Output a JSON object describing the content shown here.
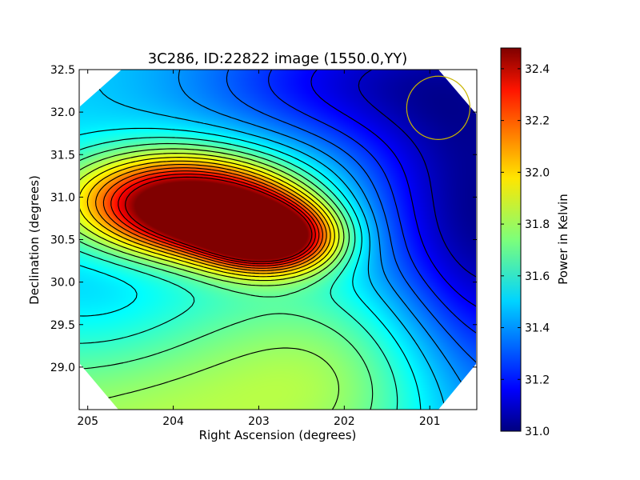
{
  "chart_data": {
    "type": "heatmap",
    "title": "3C286, ID:22822 image (1550.0,YY)",
    "xlabel": "Right Ascension (degrees)",
    "ylabel": "Declination (degrees)",
    "colorbar_label": "Power in Kelvin",
    "xlim": [
      205.1,
      200.45
    ],
    "ylim": [
      28.5,
      32.5
    ],
    "x_ticks": [
      205,
      204,
      203,
      202,
      201
    ],
    "x_tick_labels": [
      "205",
      "204",
      "203",
      "202",
      "201"
    ],
    "y_ticks": [
      29.0,
      29.5,
      30.0,
      30.5,
      31.0,
      31.5,
      32.0,
      32.5
    ],
    "y_tick_labels": [
      "29.0",
      "29.5",
      "30.0",
      "30.5",
      "31.0",
      "31.5",
      "32.0",
      "32.5"
    ],
    "colorbar_range": [
      31.0,
      32.48
    ],
    "colorbar_ticks": [
      31.0,
      31.2,
      31.4,
      31.6,
      31.8,
      32.0,
      32.2,
      32.4
    ],
    "colorbar_tick_labels": [
      "31.0",
      "31.2",
      "31.4",
      "31.6",
      "31.8",
      "32.0",
      "32.2",
      "32.4"
    ],
    "colormap": "jet",
    "contour_color": "#000000",
    "circle_color": "#c8b400",
    "peaks": [
      {
        "ra": 204.0,
        "dec": 30.95,
        "value": 32.47
      },
      {
        "ra": 202.75,
        "dec": 30.45,
        "value": 32.4
      }
    ],
    "minimum": {
      "ra": 200.5,
      "dec": 30.4,
      "value": 31.02
    },
    "circle": {
      "ra": 200.9,
      "dec": 32.05,
      "radius_deg": 0.37
    }
  }
}
